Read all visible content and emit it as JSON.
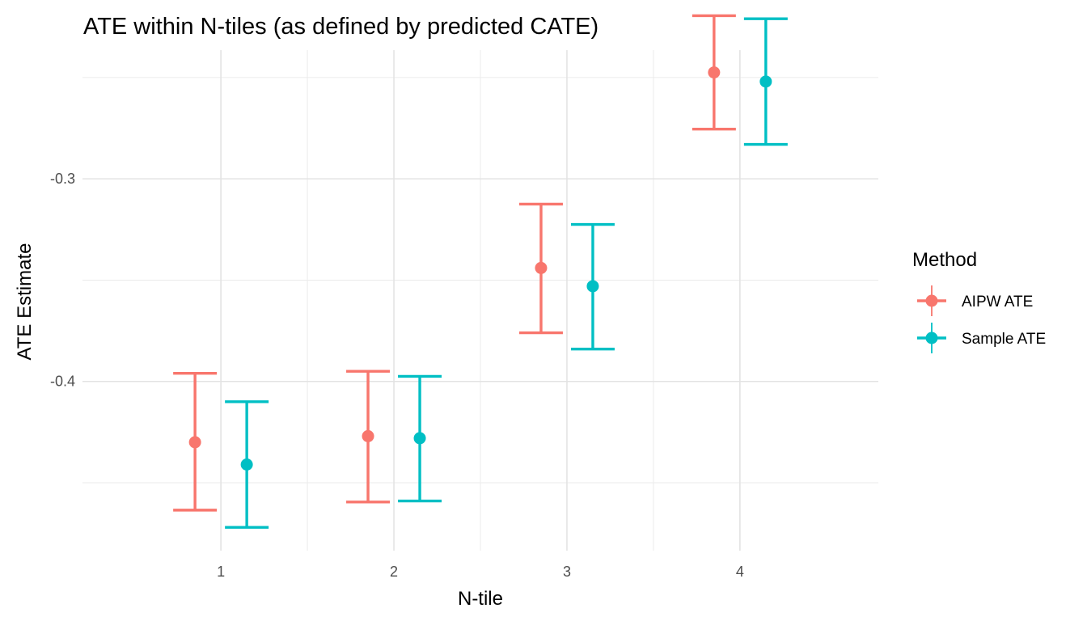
{
  "chart_data": {
    "type": "scatter",
    "title": "ATE within N-tiles (as defined by predicted CATE)",
    "xlabel": "N-tile",
    "ylabel": "ATE Estimate",
    "categories": [
      "1",
      "2",
      "3",
      "4"
    ],
    "ylim": [
      -0.4835,
      -0.2365
    ],
    "y_ticks": [
      -0.3,
      -0.4
    ],
    "y_tick_labels": [
      "-0.3",
      "-0.4"
    ],
    "grid": true,
    "legend": {
      "title": "Method",
      "position": "right"
    },
    "series": [
      {
        "name": "AIPW ATE",
        "color": "#F8766D",
        "points": [
          {
            "x": "1",
            "y": -0.43,
            "lower": -0.4635,
            "upper": -0.396
          },
          {
            "x": "2",
            "y": -0.427,
            "lower": -0.4595,
            "upper": -0.395
          },
          {
            "x": "3",
            "y": -0.344,
            "lower": -0.376,
            "upper": -0.3125
          },
          {
            "x": "4",
            "y": -0.2475,
            "lower": -0.2755,
            "upper": -0.2195
          }
        ]
      },
      {
        "name": "Sample ATE",
        "color": "#00BFC4",
        "points": [
          {
            "x": "1",
            "y": -0.441,
            "lower": -0.472,
            "upper": -0.41
          },
          {
            "x": "2",
            "y": -0.428,
            "lower": -0.459,
            "upper": -0.3975
          },
          {
            "x": "3",
            "y": -0.353,
            "lower": -0.384,
            "upper": -0.3225
          },
          {
            "x": "4",
            "y": -0.252,
            "lower": -0.283,
            "upper": -0.221
          }
        ]
      }
    ]
  }
}
